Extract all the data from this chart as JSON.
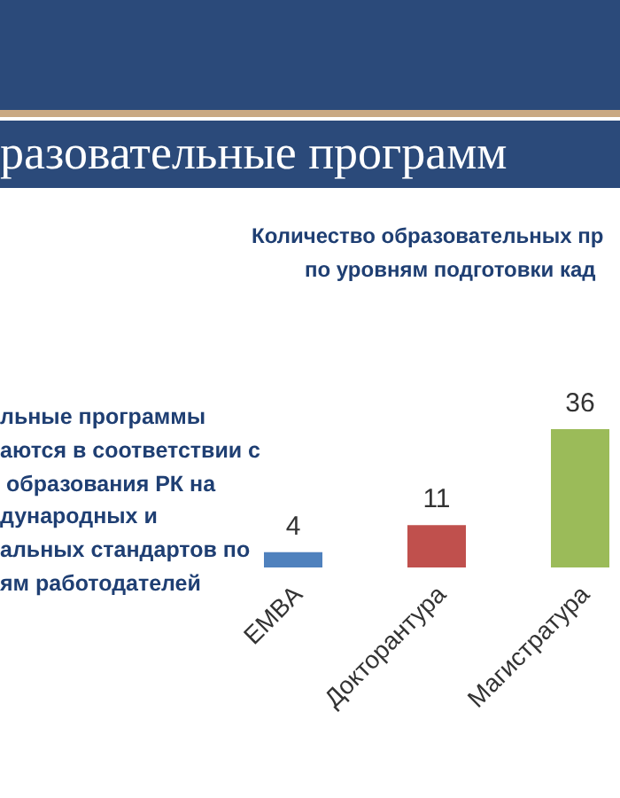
{
  "chart_data": {
    "type": "bar",
    "title": "Количество образовательных пр\nпо уровням подготовки кад",
    "annotations": [
      "разовательные программ",
      "льные программы\nаются в соответствии с\n образования РК на\nдународных и\nальных стандартов по\nям работодателей"
    ],
    "categories": [
      "EMBA",
      "Докторантура",
      "Магистратура"
    ],
    "values": [
      4,
      11,
      36
    ],
    "colors": [
      "#4f81bd",
      "#c0504d",
      "#9bbb59"
    ],
    "data_labels": true,
    "legend": false,
    "grid": false
  }
}
